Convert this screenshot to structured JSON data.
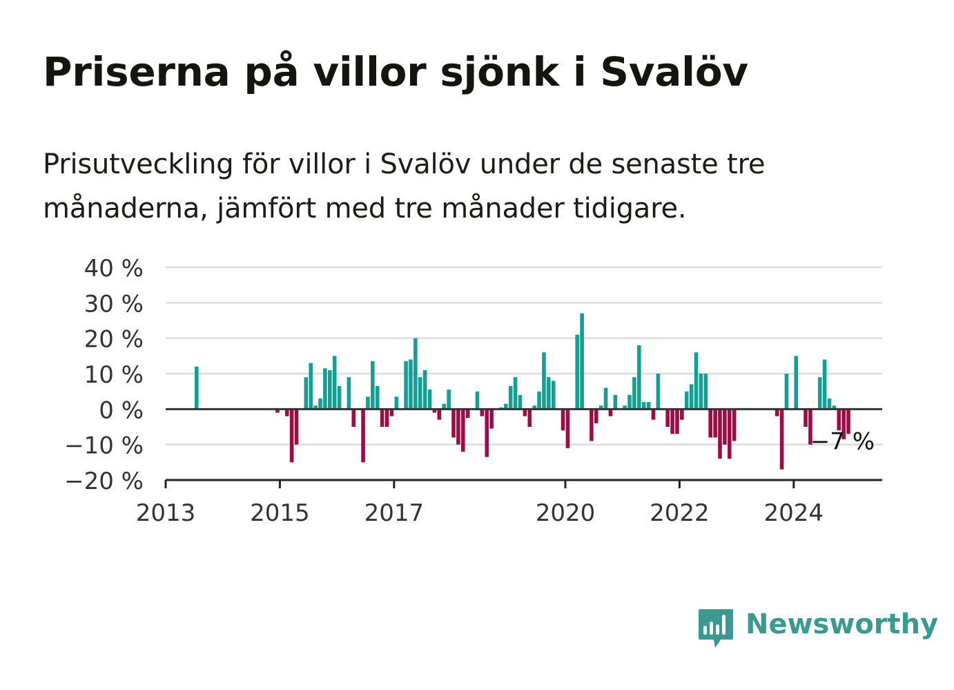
{
  "title": "Priserna på villor sjönk i Svalöv",
  "subtitle": "Prisutveckling för villor i Svalöv under de senaste tre månaderna, jämfört med tre månader tidigare.",
  "brand": {
    "name": "Newsworthy",
    "icon": "newsworthy-logo-icon",
    "color": "#3a9a90"
  },
  "colors": {
    "positive": "#12a094",
    "negative": "#9e0c47",
    "grid": "#dcdcdc",
    "axis": "#333333"
  },
  "chart_data": {
    "type": "bar",
    "value_unit": "%",
    "ylim": [
      -20,
      40
    ],
    "y_ticks": [
      {
        "value": 40,
        "label": "40 %"
      },
      {
        "value": 30,
        "label": "30 %"
      },
      {
        "value": 20,
        "label": "20 %"
      },
      {
        "value": 10,
        "label": "10 %"
      },
      {
        "value": 0,
        "label": "0 %"
      },
      {
        "value": -10,
        "label": "−10 %"
      },
      {
        "value": -20,
        "label": "−20 %"
      }
    ],
    "x_ticks": [
      {
        "value": 2013,
        "label": "2013"
      },
      {
        "value": 2015,
        "label": "2015"
      },
      {
        "value": 2017,
        "label": "2017"
      },
      {
        "value": 2020,
        "label": "2020"
      },
      {
        "value": 2022,
        "label": "2022"
      },
      {
        "value": 2024,
        "label": "2024"
      }
    ],
    "xlim": [
      2013,
      2025.55
    ],
    "grid": true,
    "end_label": "−7 %",
    "points": [
      {
        "x": "2013-07",
        "value": 12
      },
      {
        "x": "2014-12",
        "value": -1
      },
      {
        "x": "2015-02",
        "value": -2
      },
      {
        "x": "2015-03",
        "value": -15
      },
      {
        "x": "2015-04",
        "value": -10
      },
      {
        "x": "2015-06",
        "value": 9
      },
      {
        "x": "2015-07",
        "value": 13
      },
      {
        "x": "2015-08",
        "value": 1
      },
      {
        "x": "2015-09",
        "value": 3
      },
      {
        "x": "2015-10",
        "value": 11.5
      },
      {
        "x": "2015-11",
        "value": 11
      },
      {
        "x": "2015-12",
        "value": 15
      },
      {
        "x": "2016-01",
        "value": 6.5
      },
      {
        "x": "2016-03",
        "value": 9
      },
      {
        "x": "2016-04",
        "value": -5
      },
      {
        "x": "2016-06",
        "value": -15
      },
      {
        "x": "2016-07",
        "value": 3.5
      },
      {
        "x": "2016-08",
        "value": 13.5
      },
      {
        "x": "2016-09",
        "value": 6.5
      },
      {
        "x": "2016-10",
        "value": -5
      },
      {
        "x": "2016-11",
        "value": -5
      },
      {
        "x": "2016-12",
        "value": -2
      },
      {
        "x": "2017-01",
        "value": 3.5
      },
      {
        "x": "2017-03",
        "value": 13.5
      },
      {
        "x": "2017-04",
        "value": 14
      },
      {
        "x": "2017-05",
        "value": 20
      },
      {
        "x": "2017-06",
        "value": 9
      },
      {
        "x": "2017-07",
        "value": 11
      },
      {
        "x": "2017-08",
        "value": 5.5
      },
      {
        "x": "2017-09",
        "value": -1
      },
      {
        "x": "2017-10",
        "value": -3
      },
      {
        "x": "2017-11",
        "value": 1.5
      },
      {
        "x": "2017-12",
        "value": 5.5
      },
      {
        "x": "2018-01",
        "value": -8
      },
      {
        "x": "2018-02",
        "value": -10
      },
      {
        "x": "2018-03",
        "value": -12
      },
      {
        "x": "2018-04",
        "value": -2.5
      },
      {
        "x": "2018-06",
        "value": 5
      },
      {
        "x": "2018-07",
        "value": -2
      },
      {
        "x": "2018-08",
        "value": -13.5
      },
      {
        "x": "2018-09",
        "value": -5.5
      },
      {
        "x": "2018-11",
        "value": 0.5
      },
      {
        "x": "2018-12",
        "value": 1.5
      },
      {
        "x": "2019-01",
        "value": 6.5
      },
      {
        "x": "2019-02",
        "value": 9
      },
      {
        "x": "2019-03",
        "value": 4
      },
      {
        "x": "2019-04",
        "value": -2
      },
      {
        "x": "2019-05",
        "value": -5
      },
      {
        "x": "2019-06",
        "value": 1
      },
      {
        "x": "2019-07",
        "value": 5
      },
      {
        "x": "2019-08",
        "value": 16
      },
      {
        "x": "2019-09",
        "value": 9
      },
      {
        "x": "2019-10",
        "value": 8
      },
      {
        "x": "2019-12",
        "value": -6
      },
      {
        "x": "2020-01",
        "value": -11
      },
      {
        "x": "2020-03",
        "value": 21
      },
      {
        "x": "2020-04",
        "value": 27
      },
      {
        "x": "2020-06",
        "value": -9
      },
      {
        "x": "2020-07",
        "value": -4
      },
      {
        "x": "2020-08",
        "value": 1
      },
      {
        "x": "2020-09",
        "value": 6
      },
      {
        "x": "2020-10",
        "value": -2
      },
      {
        "x": "2020-11",
        "value": 4
      },
      {
        "x": "2021-01",
        "value": 1
      },
      {
        "x": "2021-02",
        "value": 4
      },
      {
        "x": "2021-03",
        "value": 9
      },
      {
        "x": "2021-04",
        "value": 18
      },
      {
        "x": "2021-05",
        "value": 2
      },
      {
        "x": "2021-06",
        "value": 2
      },
      {
        "x": "2021-07",
        "value": -3
      },
      {
        "x": "2021-08",
        "value": 10
      },
      {
        "x": "2021-10",
        "value": -5
      },
      {
        "x": "2021-11",
        "value": -7
      },
      {
        "x": "2021-12",
        "value": -7
      },
      {
        "x": "2022-01",
        "value": -3
      },
      {
        "x": "2022-02",
        "value": 5
      },
      {
        "x": "2022-03",
        "value": 7
      },
      {
        "x": "2022-04",
        "value": 16
      },
      {
        "x": "2022-05",
        "value": 10
      },
      {
        "x": "2022-06",
        "value": 10
      },
      {
        "x": "2022-07",
        "value": -8
      },
      {
        "x": "2022-08",
        "value": -8
      },
      {
        "x": "2022-09",
        "value": -14
      },
      {
        "x": "2022-10",
        "value": -10
      },
      {
        "x": "2022-11",
        "value": -14
      },
      {
        "x": "2022-12",
        "value": -9
      },
      {
        "x": "2023-09",
        "value": -2
      },
      {
        "x": "2023-10",
        "value": -17
      },
      {
        "x": "2023-11",
        "value": 10
      },
      {
        "x": "2024-01",
        "value": 15
      },
      {
        "x": "2024-03",
        "value": -5
      },
      {
        "x": "2024-04",
        "value": -10
      },
      {
        "x": "2024-06",
        "value": 9
      },
      {
        "x": "2024-07",
        "value": 14
      },
      {
        "x": "2024-08",
        "value": 3
      },
      {
        "x": "2024-09",
        "value": 1
      },
      {
        "x": "2024-10",
        "value": -6
      },
      {
        "x": "2024-11",
        "value": -8.5
      },
      {
        "x": "2024-12",
        "value": -7
      }
    ]
  }
}
